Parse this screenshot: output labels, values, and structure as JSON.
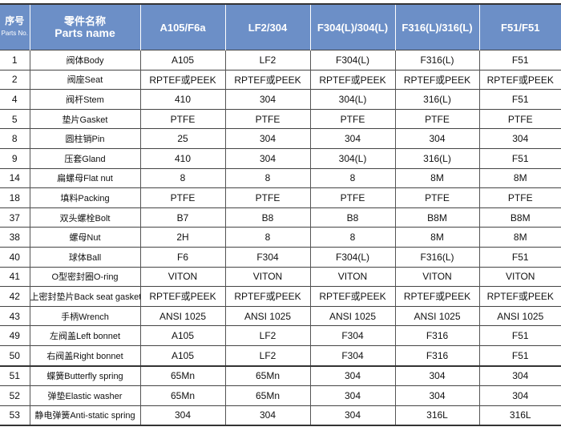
{
  "header": {
    "no_cn": "序号",
    "no_en": "Parts No.",
    "name_cn": "零件名称",
    "name_en": "Parts name",
    "materials": [
      "A105/F6a",
      "LF2/304",
      "F304(L)/304(L)",
      "F316(L)/316(L)",
      "F51/F51"
    ]
  },
  "rows": [
    {
      "no": "1",
      "name": "阀体Body",
      "m": [
        "A105",
        "LF2",
        "F304(L)",
        "F316(L)",
        "F51"
      ]
    },
    {
      "no": "2",
      "name": "阀座Seat",
      "m": [
        "RPTEF或PEEK",
        "RPTEF或PEEK",
        "RPTEF或PEEK",
        "RPTEF或PEEK",
        "RPTEF或PEEK"
      ]
    },
    {
      "no": "4",
      "name": "阀杆Stem",
      "m": [
        "410",
        "304",
        "304(L)",
        "316(L)",
        "F51"
      ]
    },
    {
      "no": "5",
      "name": "垫片Gasket",
      "m": [
        "PTFE",
        "PTFE",
        "PTFE",
        "PTFE",
        "PTFE"
      ]
    },
    {
      "no": "8",
      "name": "圆柱销Pin",
      "m": [
        "25",
        "304",
        "304",
        "304",
        "304"
      ]
    },
    {
      "no": "9",
      "name": "压套Gland",
      "m": [
        "410",
        "304",
        "304(L)",
        "316(L)",
        "F51"
      ]
    },
    {
      "no": "14",
      "name": "扁螺母Flat nut",
      "m": [
        "8",
        "8",
        "8",
        "8M",
        "8M"
      ]
    },
    {
      "no": "18",
      "name": "填料Packing",
      "m": [
        "PTFE",
        "PTFE",
        "PTFE",
        "PTFE",
        "PTFE"
      ]
    },
    {
      "no": "37",
      "name": "双头螺栓Bolt",
      "m": [
        "B7",
        "B8",
        "B8",
        "B8M",
        "B8M"
      ]
    },
    {
      "no": "38",
      "name": "螺母Nut",
      "m": [
        "2H",
        "8",
        "8",
        "8M",
        "8M"
      ]
    },
    {
      "no": "40",
      "name": "球体Ball",
      "m": [
        "F6",
        "F304",
        "F304(L)",
        "F316(L)",
        "F51"
      ]
    },
    {
      "no": "41",
      "name": "O型密封圈O-ring",
      "m": [
        "VITON",
        "VITON",
        "VITON",
        "VITON",
        "VITON"
      ]
    },
    {
      "no": "42",
      "name": "上密封垫片Back seat gasket",
      "m": [
        "RPTEF或PEEK",
        "RPTEF或PEEK",
        "RPTEF或PEEK",
        "RPTEF或PEEK",
        "RPTEF或PEEK"
      ]
    },
    {
      "no": "43",
      "name": "手柄Wrench",
      "m": [
        "ANSI 1025",
        "ANSI 1025",
        "ANSI 1025",
        "ANSI 1025",
        "ANSI 1025"
      ]
    },
    {
      "no": "49",
      "name": "左阀盖Left bonnet",
      "m": [
        "A105",
        "LF2",
        "F304",
        "F316",
        "F51"
      ]
    },
    {
      "no": "50",
      "name": "右阀盖Right bonnet",
      "m": [
        "A105",
        "LF2",
        "F304",
        "F316",
        "F51"
      ]
    },
    {
      "no": "51",
      "name": "蝶簧Butterfly spring",
      "m": [
        "65Mn",
        "65Mn",
        "304",
        "304",
        "304"
      ]
    },
    {
      "no": "52",
      "name": "弹垫Elastic washer",
      "m": [
        "65Mn",
        "65Mn",
        "304",
        "304",
        "304"
      ]
    },
    {
      "no": "53",
      "name": "静电弹簧Anti-static spring",
      "m": [
        "304",
        "304",
        "304",
        "316L",
        "316L"
      ]
    }
  ],
  "colors": {
    "header_bg": "#6c8fc7"
  }
}
